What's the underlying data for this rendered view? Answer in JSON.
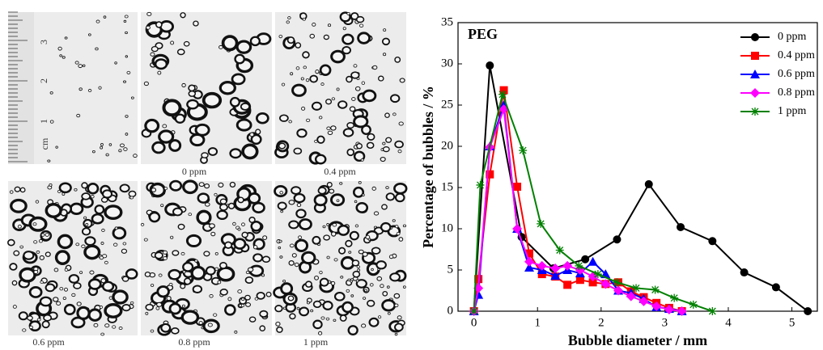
{
  "photos": {
    "captions": [
      "0 ppm",
      "0.4 ppm",
      "0.6 ppm",
      "0.8 ppm",
      "1 ppm"
    ],
    "ruler": [
      "cm",
      "1",
      "2",
      "3"
    ]
  },
  "chart_data": {
    "type": "line",
    "annotation": "PEG",
    "x_label": "Bubble diameter / mm",
    "y_label": "Percentage of bubbles / %",
    "xlim": [
      -0.25,
      5.4
    ],
    "ylim": [
      0,
      35
    ],
    "xticks": [
      0,
      1,
      2,
      3,
      4,
      5
    ],
    "yticks": [
      0,
      5,
      10,
      15,
      20,
      25,
      30,
      35
    ],
    "legend": "upper right",
    "series": [
      {
        "name": "0 ppm",
        "color": "#000000",
        "marker": "circle",
        "x": [
          0,
          0.25,
          0.75,
          1.25,
          1.75,
          2.25,
          2.75,
          3.25,
          3.75,
          4.25,
          4.75,
          5.25
        ],
        "values": [
          0,
          29.8,
          9,
          5.2,
          6.3,
          8.7,
          15.4,
          10.2,
          8.5,
          4.7,
          2.9,
          0
        ]
      },
      {
        "name": "0.4 ppm",
        "color": "#ff0000",
        "marker": "square",
        "x": [
          0,
          0.07,
          0.25,
          0.47,
          0.68,
          0.87,
          1.07,
          1.28,
          1.47,
          1.67,
          1.87,
          2.07,
          2.27,
          2.47,
          2.67,
          2.87,
          3.07,
          3.27
        ],
        "values": [
          0,
          3.9,
          16.6,
          26.8,
          15.1,
          7,
          4.5,
          4.2,
          3.2,
          3.8,
          3.5,
          3.3,
          3.5,
          2.4,
          1.7,
          1,
          0.4,
          0
        ]
      },
      {
        "name": "0.6 ppm",
        "color": "#0000ff",
        "marker": "triangle",
        "x": [
          0,
          0.07,
          0.25,
          0.47,
          0.68,
          0.87,
          1.07,
          1.28,
          1.47,
          1.67,
          1.87,
          2.07,
          2.27,
          2.47,
          2.67,
          2.87,
          3.07,
          3.27
        ],
        "values": [
          0,
          2,
          20,
          25,
          10,
          5.3,
          5,
          4.3,
          5,
          4.6,
          6,
          4.5,
          2.5,
          2.2,
          1.5,
          0.5,
          0.3,
          0
        ]
      },
      {
        "name": "0.8 ppm",
        "color": "#ff00ff",
        "marker": "diamond",
        "x": [
          0,
          0.07,
          0.25,
          0.47,
          0.68,
          0.87,
          1.07,
          1.28,
          1.47,
          1.67,
          1.87,
          2.07,
          2.27,
          2.47,
          2.67,
          2.87,
          3.07,
          3.27
        ],
        "values": [
          0,
          2.8,
          19.9,
          24.5,
          10,
          6,
          5.5,
          5.2,
          5.5,
          5,
          4.2,
          3.3,
          2.5,
          1.8,
          1.2,
          0.6,
          0.2,
          0
        ]
      },
      {
        "name": "1 ppm",
        "color": "#008000",
        "marker": "star",
        "x": [
          0,
          0.1,
          0.45,
          0.77,
          1.05,
          1.35,
          1.65,
          1.95,
          2.25,
          2.55,
          2.85,
          3.15,
          3.45,
          3.75
        ],
        "values": [
          0,
          15.3,
          26.3,
          19.5,
          10.6,
          7.4,
          5.5,
          4.5,
          3.5,
          2.8,
          2.6,
          1.6,
          0.8,
          0
        ]
      }
    ]
  }
}
